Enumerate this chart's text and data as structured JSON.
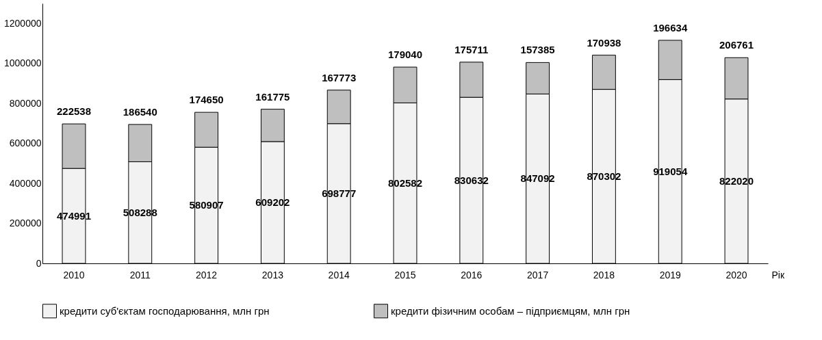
{
  "chart_data": {
    "type": "bar",
    "stacked": true,
    "xlabel": "Рік",
    "categories": [
      "2010",
      "2011",
      "2012",
      "2013",
      "2014",
      "2015",
      "2016",
      "2017",
      "2018",
      "2019",
      "2020"
    ],
    "series": [
      {
        "name": "кредити суб'єктам господарювання, млн грн",
        "color": "#f2f2f2",
        "values": [
          474991,
          508288,
          580907,
          609202,
          698777,
          802582,
          830632,
          847092,
          870302,
          919054,
          822020
        ]
      },
      {
        "name": "кредити фізичним особам – підприємцям, млн грн",
        "color": "#bfbfbf",
        "values": [
          222538,
          186540,
          174650,
          161775,
          167773,
          179040,
          175711,
          157385,
          170938,
          196634,
          206761
        ]
      }
    ],
    "ylim": [
      0,
      1300000
    ],
    "yticks": [
      0,
      200000,
      400000,
      600000,
      800000,
      1000000,
      1200000
    ],
    "data_labels": true,
    "grid": false,
    "legend": "bottom"
  }
}
